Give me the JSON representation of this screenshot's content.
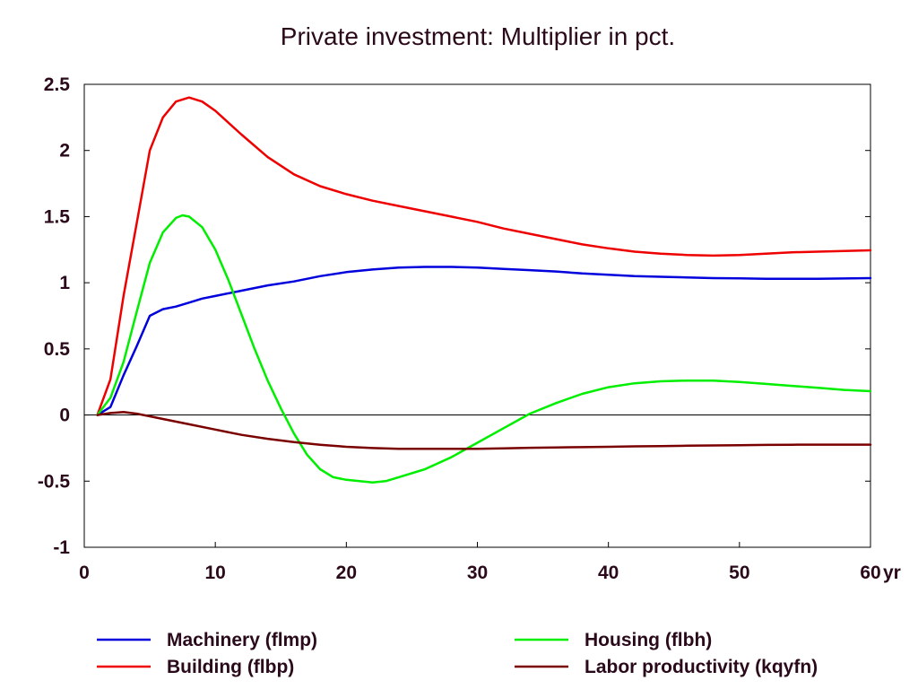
{
  "chart_data": {
    "type": "line",
    "title": "Private investment: Multiplier in pct.",
    "xlabel": "",
    "ylabel": "",
    "x_unit_label": "yr",
    "xlim": [
      0,
      60
    ],
    "ylim": [
      -1,
      2.5
    ],
    "x_ticks": [
      0,
      10,
      20,
      30,
      40,
      50,
      60
    ],
    "x_tick_labels": [
      "0",
      "10",
      "20",
      "30",
      "40",
      "50",
      "60"
    ],
    "y_ticks": [
      -1,
      -0.5,
      0,
      0.5,
      1,
      1.5,
      2,
      2.5
    ],
    "y_tick_labels": [
      "-1",
      "-0.5",
      "0",
      "0.5",
      "1",
      "1.5",
      "2",
      "2.5"
    ],
    "zero_line": true,
    "grid": false,
    "legend_position": "bottom",
    "series": [
      {
        "name": "Machinery (flmp)",
        "color": "#0000dd",
        "x": [
          1,
          2,
          3,
          4,
          5,
          6,
          7,
          8,
          9,
          10,
          12,
          14,
          16,
          18,
          20,
          22,
          24,
          26,
          28,
          30,
          32,
          34,
          36,
          38,
          40,
          42,
          44,
          46,
          48,
          50,
          52,
          54,
          56,
          58,
          60
        ],
        "y": [
          0,
          0.06,
          0.3,
          0.52,
          0.75,
          0.8,
          0.82,
          0.85,
          0.88,
          0.9,
          0.94,
          0.98,
          1.01,
          1.05,
          1.08,
          1.1,
          1.115,
          1.12,
          1.12,
          1.115,
          1.105,
          1.095,
          1.085,
          1.07,
          1.06,
          1.05,
          1.045,
          1.04,
          1.035,
          1.033,
          1.03,
          1.03,
          1.03,
          1.032,
          1.035
        ]
      },
      {
        "name": "Building (flbp)",
        "color": "#ee0000",
        "x": [
          1,
          2,
          3,
          4,
          5,
          6,
          7,
          8,
          9,
          10,
          12,
          14,
          16,
          18,
          20,
          22,
          24,
          26,
          28,
          30,
          32,
          34,
          36,
          38,
          40,
          42,
          44,
          46,
          48,
          50,
          52,
          54,
          56,
          58,
          60
        ],
        "y": [
          0,
          0.27,
          0.9,
          1.45,
          2.0,
          2.25,
          2.37,
          2.4,
          2.37,
          2.3,
          2.12,
          1.95,
          1.82,
          1.73,
          1.67,
          1.62,
          1.58,
          1.54,
          1.5,
          1.46,
          1.41,
          1.37,
          1.33,
          1.29,
          1.26,
          1.235,
          1.22,
          1.21,
          1.205,
          1.21,
          1.22,
          1.23,
          1.235,
          1.24,
          1.245
        ]
      },
      {
        "name": "Housing (flbh)",
        "color": "#00ee00",
        "x": [
          1,
          2,
          3,
          4,
          5,
          6,
          7,
          7.5,
          8,
          9,
          10,
          11,
          12,
          13,
          14,
          15,
          16,
          17,
          18,
          19,
          20,
          21,
          22,
          23,
          24,
          26,
          28,
          30,
          32,
          34,
          36,
          38,
          40,
          42,
          44,
          46,
          48,
          50,
          52,
          54,
          56,
          58,
          60
        ],
        "y": [
          0,
          0.13,
          0.4,
          0.78,
          1.15,
          1.38,
          1.49,
          1.51,
          1.5,
          1.42,
          1.25,
          1.02,
          0.76,
          0.5,
          0.26,
          0.05,
          -0.14,
          -0.3,
          -0.41,
          -0.47,
          -0.49,
          -0.5,
          -0.51,
          -0.5,
          -0.47,
          -0.41,
          -0.32,
          -0.21,
          -0.1,
          0.01,
          0.09,
          0.16,
          0.21,
          0.24,
          0.255,
          0.26,
          0.26,
          0.25,
          0.235,
          0.22,
          0.205,
          0.19,
          0.18
        ]
      },
      {
        "name": "Labor productivity (kqyfn)",
        "color": "#7a0000",
        "x": [
          1,
          2,
          3,
          4,
          5,
          6,
          8,
          10,
          12,
          14,
          16,
          18,
          20,
          22,
          24,
          26,
          28,
          30,
          32,
          34,
          36,
          38,
          40,
          42,
          44,
          46,
          48,
          50,
          52,
          54,
          56,
          58,
          60
        ],
        "y": [
          0,
          0.015,
          0.022,
          0.01,
          -0.01,
          -0.03,
          -0.07,
          -0.11,
          -0.15,
          -0.18,
          -0.205,
          -0.225,
          -0.24,
          -0.25,
          -0.255,
          -0.255,
          -0.255,
          -0.255,
          -0.252,
          -0.248,
          -0.245,
          -0.243,
          -0.24,
          -0.237,
          -0.235,
          -0.232,
          -0.23,
          -0.228,
          -0.226,
          -0.225,
          -0.224,
          -0.224,
          -0.224
        ]
      }
    ]
  }
}
